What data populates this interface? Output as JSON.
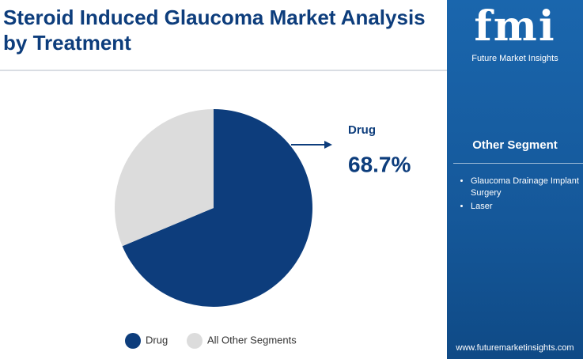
{
  "chart_data": {
    "type": "pie",
    "title": "Steroid Induced Glaucoma Market Analysis by Treatment",
    "categories": [
      "Drug",
      "All Other Segments"
    ],
    "values": [
      68.7,
      31.3
    ],
    "value_labels": [
      "68.7%",
      null
    ],
    "colors": [
      "#0d3d7c",
      "#dcdcdc"
    ],
    "legend": "bottom"
  },
  "sidebar": {
    "logo": "fmi",
    "brand": "Future Market Insights",
    "heading": "Other Segment",
    "items": [
      "Glaucoma Drainage Implant Surgery",
      "Laser"
    ],
    "url": "www.futuremarketinsights.com"
  }
}
